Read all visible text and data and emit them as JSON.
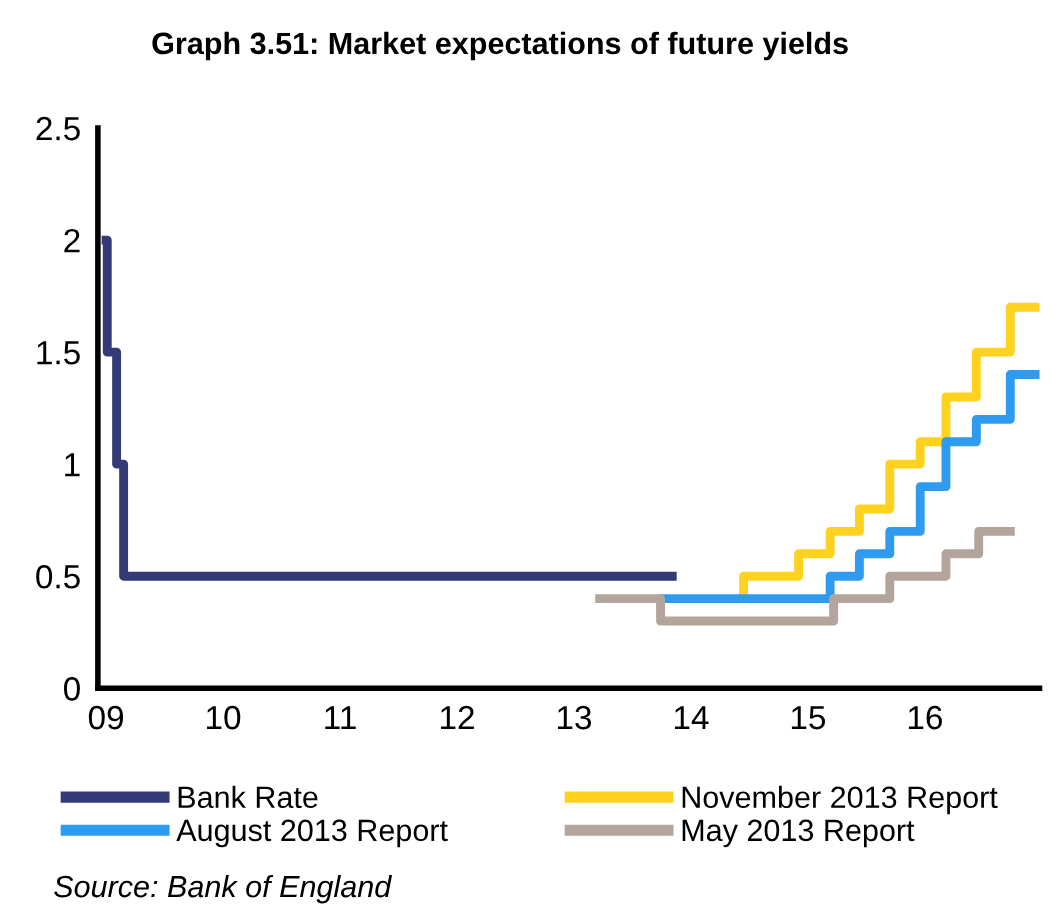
{
  "chart_data": {
    "type": "step",
    "title": "Graph 3.51: Market expectations of future yields",
    "annotations": [
      "Source: Bank of England"
    ],
    "xlim": [
      2008.93,
      2016.98
    ],
    "xticks": [
      {
        "value": 2009,
        "label": "09"
      },
      {
        "value": 2010,
        "label": "10"
      },
      {
        "value": 2011,
        "label": "11"
      },
      {
        "value": 2012,
        "label": "12"
      },
      {
        "value": 2013,
        "label": "13"
      },
      {
        "value": 2014,
        "label": "14"
      },
      {
        "value": 2015,
        "label": "15"
      },
      {
        "value": 2016,
        "label": "16"
      }
    ],
    "ylim": [
      0,
      2.5
    ],
    "yticks": [
      0,
      0.5,
      1,
      1.5,
      2,
      2.5
    ],
    "grid": false,
    "legend": "bottom",
    "line_style": "solid",
    "marker": "none",
    "series": [
      {
        "name": "Bank Rate",
        "color": "#333a75",
        "x": [
          2009.0,
          2009.01,
          2009.09,
          2009.15,
          2013.84
        ],
        "values": [
          2.0,
          1.5,
          1.0,
          0.5,
          0.5
        ]
      },
      {
        "name": "November 2013 Report",
        "color": "#ffd21f",
        "x": [
          2014.44,
          2014.45,
          2014.92,
          2015.19,
          2015.44,
          2015.7,
          2015.96,
          2016.18,
          2016.44,
          2016.73,
          2016.98
        ],
        "values": [
          0.4,
          0.5,
          0.6,
          0.7,
          0.8,
          1.0,
          1.1,
          1.3,
          1.5,
          1.7,
          1.7
        ]
      },
      {
        "name": "August 2013 Report",
        "color": "#2e9bf0",
        "x": [
          2013.76,
          2015.19,
          2015.44,
          2015.7,
          2015.96,
          2016.18,
          2016.44,
          2016.73,
          2016.98
        ],
        "values": [
          0.4,
          0.5,
          0.6,
          0.7,
          0.9,
          1.1,
          1.2,
          1.4,
          1.4
        ]
      },
      {
        "name": "May 2013 Report",
        "color": "#b3a59c",
        "x": [
          2013.22,
          2013.74,
          2015.22,
          2015.7,
          2016.18,
          2016.46,
          2016.73
        ],
        "values": [
          0.4,
          0.3,
          0.4,
          0.5,
          0.6,
          0.7,
          0.7
        ]
      }
    ]
  }
}
